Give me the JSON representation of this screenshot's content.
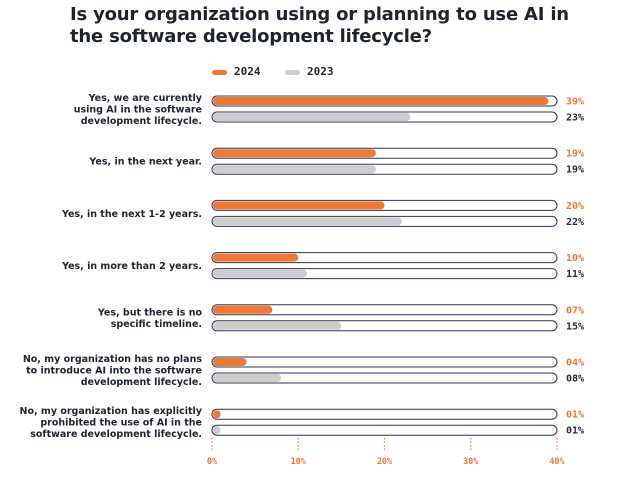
{
  "chart_data": {
    "type": "bar",
    "orientation": "horizontal",
    "title": "Is your organization using or planning to use AI in the software development lifecycle?",
    "categories": [
      [
        "Yes, we are currently",
        "using AI in the software",
        "development lifecycle."
      ],
      [
        "Yes, in the next year."
      ],
      [
        "Yes, in the next 1-2 years."
      ],
      [
        "Yes, in more than 2 years."
      ],
      [
        "Yes, but there is no",
        "specific timeline."
      ],
      [
        "No, my organization has no plans",
        "to introduce AI into the software",
        "development lifecycle."
      ],
      [
        "No, my organization has explicitly",
        "prohibited the use of AI in the",
        "software development lifecycle."
      ]
    ],
    "series": [
      {
        "name": "2024",
        "color": "#ec7a35",
        "values": [
          39,
          19,
          20,
          10,
          7,
          4,
          1
        ],
        "labels": [
          "39%",
          "19%",
          "20%",
          "10%",
          "07%",
          "04%",
          "01%"
        ]
      },
      {
        "name": "2023",
        "color": "#cdcdcd",
        "values": [
          23,
          19,
          22,
          11,
          15,
          8,
          1
        ],
        "labels": [
          "23%",
          "19%",
          "22%",
          "11%",
          "15%",
          "08%",
          "01%"
        ]
      }
    ],
    "xlim": [
      0,
      40
    ],
    "xticks": [
      0,
      10,
      20,
      30,
      40
    ],
    "xtick_labels": [
      "0%",
      "10%",
      "20%",
      "30%",
      "40%"
    ],
    "legend_position": "top",
    "track_outline_color": "#2e3458",
    "axis_color": "#ec7a35"
  }
}
